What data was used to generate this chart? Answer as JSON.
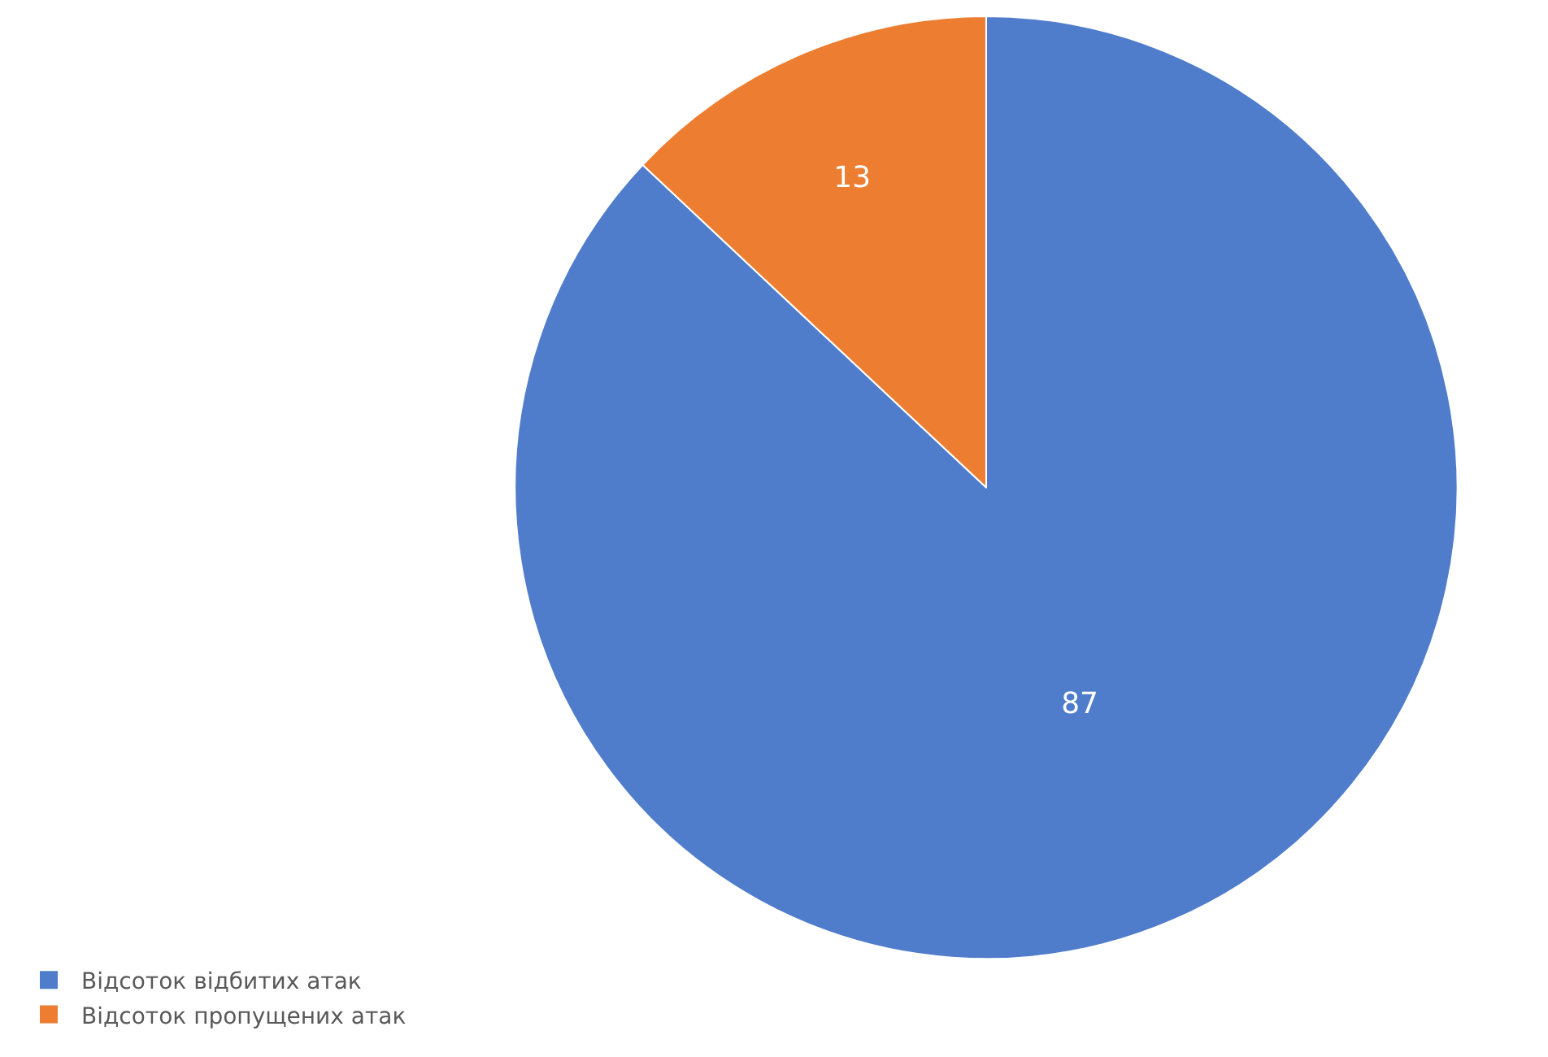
{
  "chart_data": {
    "type": "pie",
    "categories": [
      "Відсоток відбитих атак",
      "Відсоток пропущених атак"
    ],
    "values": [
      87,
      13
    ],
    "colors": [
      "#4f7dcb",
      "#ed7d31"
    ],
    "data_labels": true,
    "legend": "bottom left"
  }
}
